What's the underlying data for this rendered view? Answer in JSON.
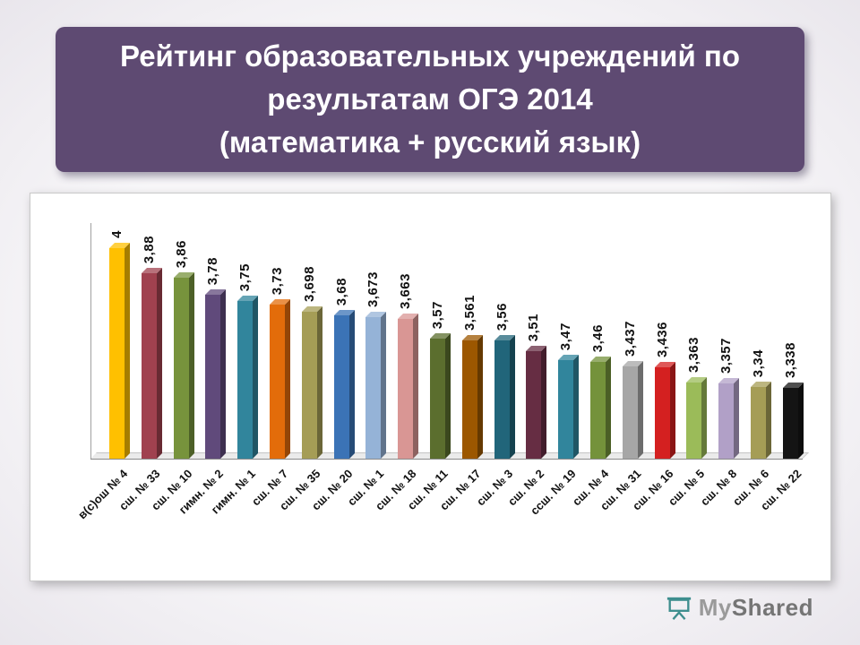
{
  "header": {
    "lines": [
      "Рейтинг образовательных учреждений по",
      "результатам ОГЭ 2014",
      "(математика + русский язык)"
    ]
  },
  "chart_data": {
    "type": "bar",
    "title": "Рейтинг образовательных учреждений по результатам ОГЭ 2014 (математика + русский язык)",
    "xlabel": "",
    "ylabel": "",
    "ylim": [
      3,
      4
    ],
    "grid": false,
    "legend": "none",
    "effect": "3d",
    "categories": [
      "в(с)ош № 4",
      "сш. № 33",
      "сш. № 10",
      "гимн. № 2",
      "гимн. № 1",
      "сш. № 7",
      "сш. № 35",
      "сш. № 20",
      "сш. № 1",
      "сш. № 18",
      "сш. № 11",
      "сш. № 17",
      "сш. № 3",
      "сш. № 2",
      "ссш. № 19",
      "сш. № 4",
      "сш. № 31",
      "сш. № 16",
      "сш. № 5",
      "сш. № 8",
      "сш. № 6",
      "сш. № 22"
    ],
    "values": [
      4,
      3.88,
      3.86,
      3.78,
      3.75,
      3.73,
      3.698,
      3.68,
      3.673,
      3.663,
      3.57,
      3.561,
      3.56,
      3.51,
      3.47,
      3.46,
      3.437,
      3.436,
      3.363,
      3.357,
      3.34,
      3.338
    ],
    "value_labels": [
      "4",
      "3,88",
      "3,86",
      "3,78",
      "3,75",
      "3,73",
      "3,698",
      "3,68",
      "3,673",
      "3,663",
      "3,57",
      "3,561",
      "3,56",
      "3,51",
      "3,47",
      "3,46",
      "3,437",
      "3,436",
      "3,363",
      "3,357",
      "3,34",
      "3,338"
    ],
    "bar_colors": [
      "#FFC000",
      "#A0414F",
      "#77933C",
      "#604A7B",
      "#31859C",
      "#E36C0A",
      "#A59D56",
      "#3B73B6",
      "#95B3D7",
      "#D99694",
      "#5B6E2E",
      "#9C5700",
      "#21657A",
      "#662D43",
      "#31859C",
      "#74923B",
      "#A6A6A6",
      "#D42020",
      "#9BBB59",
      "#B1A0C7",
      "#A59D56",
      "#141414"
    ]
  },
  "footer": {
    "logo_text_my": "My",
    "logo_text_shared": "Shared",
    "logo_icon": "projection-screen-icon"
  }
}
